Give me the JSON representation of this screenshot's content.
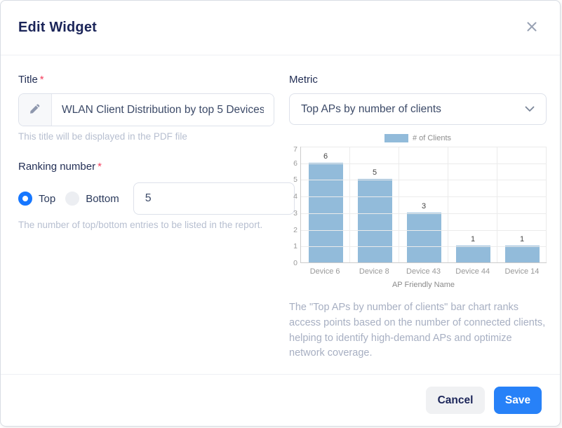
{
  "modal": {
    "title": "Edit Widget"
  },
  "title_field": {
    "label": "Title",
    "required_mark": "*",
    "value": "WLAN Client Distribution by top 5 Devices",
    "helper": "This title will be displayed in the PDF file"
  },
  "ranking": {
    "label": "Ranking number",
    "required_mark": "*",
    "options": [
      {
        "label": "Top",
        "selected": true
      },
      {
        "label": "Bottom",
        "selected": false
      }
    ],
    "value": "5",
    "helper": "The number of top/bottom entries to be listed in the report."
  },
  "metric": {
    "label": "Metric",
    "selected_value": "Top APs by number of clients"
  },
  "chart_description": "The \"Top APs by number of clients\" bar chart ranks access points based on the number of connected clients, helping to identify high-demand APs and optimize network coverage.",
  "footer": {
    "cancel_label": "Cancel",
    "save_label": "Save"
  },
  "colors": {
    "accent_blue": "#1677ff",
    "save_blue": "#2781f8",
    "bar_blue": "#92bbda",
    "required_red": "#f43f5e"
  },
  "chart_data": {
    "type": "bar",
    "title": "",
    "legend": "# of Clients",
    "categories": [
      "Device 6",
      "Device 8",
      "Device 43",
      "Device 44",
      "Device 14"
    ],
    "values": [
      6,
      5,
      3,
      1,
      1
    ],
    "xlabel": "AP Friendly Name",
    "ylabel": "",
    "ylim": [
      0,
      7
    ],
    "yticks": [
      0,
      1,
      2,
      3,
      4,
      5,
      6,
      7
    ],
    "grid": true,
    "legend_position": "top"
  }
}
